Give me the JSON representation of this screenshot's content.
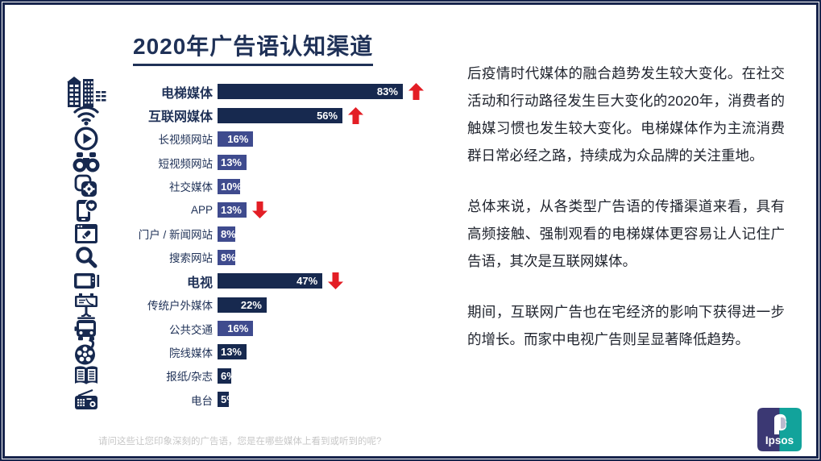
{
  "slide": {
    "title": "2020年广告语认知渠道",
    "footer": "请问这些让您印象深刻的广告语，您是在哪些媒体上看到或听到的呢?",
    "logo_text": "Ipsos"
  },
  "colors": {
    "navy": "#17294f",
    "slate": "#3f4b8e",
    "label_navy": "#1f3157",
    "red": "#e31e25",
    "logo_indigo": "#3b3873",
    "logo_teal": "#12a39b",
    "footer_gray": "#c7c7c7"
  },
  "right_text": {
    "paragraphs": [
      "后疫情时代媒体的融合趋势发生较大变化。在社交活动和行动路径发生巨大变化的2020年，消费者的触媒习惯也发生较大变化。电梯媒体作为主流消费群日常必经之路，持续成为众品牌的关注重地。",
      "总体来说，从各类型广告语的传播渠道来看，具有高频接触、强制观看的电梯媒体更容易让人记住广告语，其次是互联网媒体。",
      "期间，互联网广告也在宅经济的影响下获得进一步的增长。而家中电视广告则呈显著降低趋势。"
    ]
  },
  "chart_data": {
    "type": "bar",
    "orientation": "horizontal",
    "title": "2020年广告语认知渠道",
    "xlabel": "",
    "ylabel": "",
    "unit": "%",
    "xlim": [
      0,
      100
    ],
    "grid": false,
    "legend": "none",
    "categories": [
      "电梯媒体",
      "互联网媒体",
      "长视频网站",
      "短视频网站",
      "社交媒体",
      "APP",
      "门户 / 新闻网站",
      "搜索网站",
      "电视",
      "传统户外媒体",
      "公共交通",
      "院线媒体",
      "报纸/杂志",
      "电台"
    ],
    "values": [
      83,
      56,
      16,
      13,
      10,
      13,
      8,
      8,
      47,
      22,
      16,
      13,
      6,
      5
    ],
    "rows": [
      {
        "label": "电梯媒体",
        "value": 83,
        "emphasis": true,
        "color": "navy",
        "trend": "up",
        "icon": "buildings-icon"
      },
      {
        "label": "互联网媒体",
        "value": 56,
        "emphasis": true,
        "color": "navy",
        "trend": "up",
        "icon": "wifi-icon"
      },
      {
        "label": "长视频网站",
        "value": 16,
        "emphasis": false,
        "color": "slate",
        "trend": null,
        "icon": "play-icon"
      },
      {
        "label": "短视频网站",
        "value": 13,
        "emphasis": false,
        "color": "slate",
        "trend": null,
        "icon": "binoculars-icon"
      },
      {
        "label": "社交媒体",
        "value": 10,
        "emphasis": false,
        "color": "slate",
        "trend": null,
        "icon": "social-gear-icon"
      },
      {
        "label": "APP",
        "value": 13,
        "emphasis": false,
        "color": "slate",
        "trend": "down",
        "icon": "phone-heart-icon"
      },
      {
        "label": "门户 / 新闻网站",
        "value": 8,
        "emphasis": false,
        "color": "slate",
        "trend": null,
        "icon": "browser-pencil-icon"
      },
      {
        "label": "搜索网站",
        "value": 8,
        "emphasis": false,
        "color": "slate",
        "trend": null,
        "icon": "search-icon"
      },
      {
        "label": "电视",
        "value": 47,
        "emphasis": true,
        "color": "navy",
        "trend": "down",
        "icon": "tv-icon"
      },
      {
        "label": "传统户外媒体",
        "value": 22,
        "emphasis": false,
        "color": "navy",
        "trend": null,
        "icon": "billboard-icon"
      },
      {
        "label": "公共交通",
        "value": 16,
        "emphasis": false,
        "color": "slate",
        "trend": null,
        "icon": "bus-icon"
      },
      {
        "label": "院线媒体",
        "value": 13,
        "emphasis": false,
        "color": "navy",
        "trend": null,
        "icon": "film-reel-icon"
      },
      {
        "label": "报纸/杂志",
        "value": 6,
        "emphasis": false,
        "color": "navy",
        "trend": null,
        "icon": "book-icon"
      },
      {
        "label": "电台",
        "value": 5,
        "emphasis": false,
        "color": "navy",
        "trend": null,
        "icon": "radio-icon"
      }
    ]
  }
}
